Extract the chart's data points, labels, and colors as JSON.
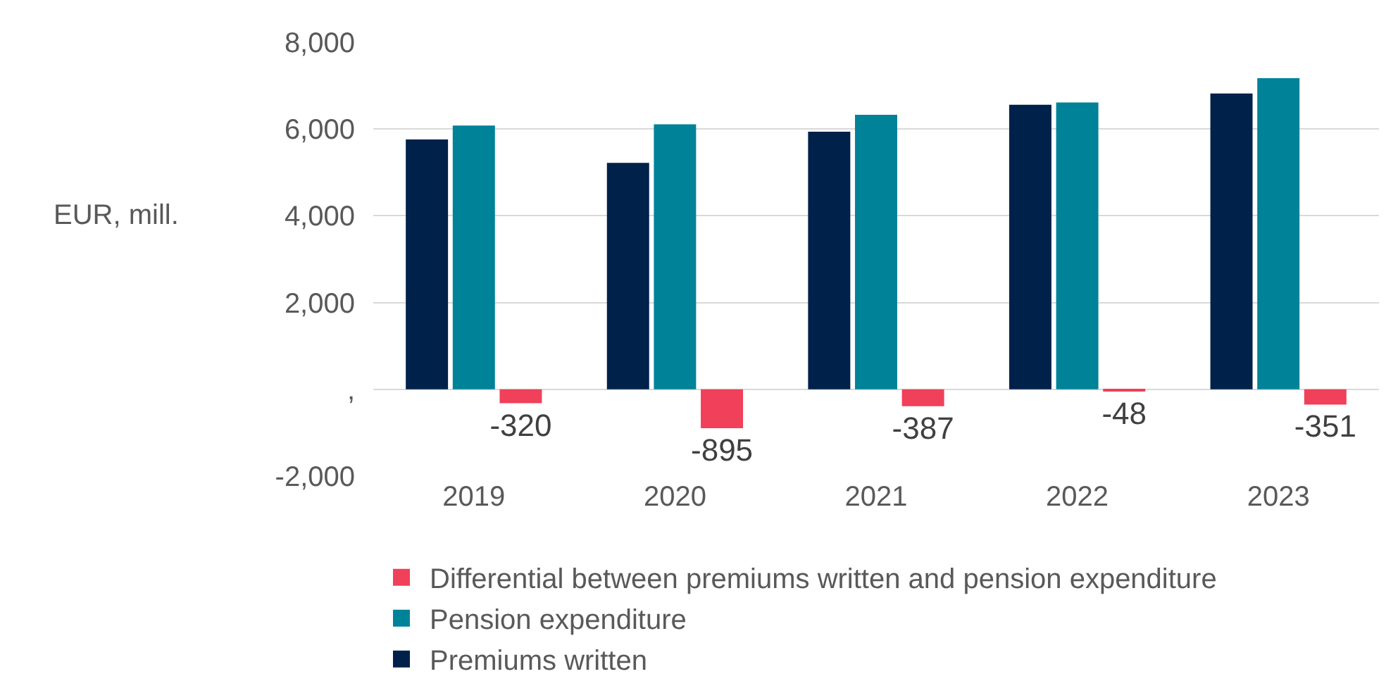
{
  "chart_data": {
    "type": "bar",
    "ylabel": "EUR, mill.",
    "categories": [
      "2019",
      "2020",
      "2021",
      "2022",
      "2023"
    ],
    "series": [
      {
        "name": "Premiums written",
        "color": "#00214a",
        "values": [
          5760,
          5220,
          5940,
          6560,
          6820
        ]
      },
      {
        "name": "Pension expenditure",
        "color": "#008299",
        "values": [
          6080,
          6110,
          6330,
          6610,
          7170
        ]
      },
      {
        "name": "Differential between premiums written and pension expenditure",
        "color": "#f0405a",
        "values": [
          -320,
          -895,
          -387,
          -48,
          -351
        ],
        "data_labels": true
      }
    ],
    "ylim": [
      -2000,
      8000
    ],
    "yticks": [
      {
        "value": -2000,
        "label": "-2,000"
      },
      {
        "value": 0,
        "label": ","
      },
      {
        "value": 2000,
        "label": "2,000"
      },
      {
        "value": 4000,
        "label": "4,000"
      },
      {
        "value": 6000,
        "label": "6,000"
      },
      {
        "value": 8000,
        "label": "8,000"
      }
    ],
    "grid": "y",
    "legend": "bottom"
  }
}
